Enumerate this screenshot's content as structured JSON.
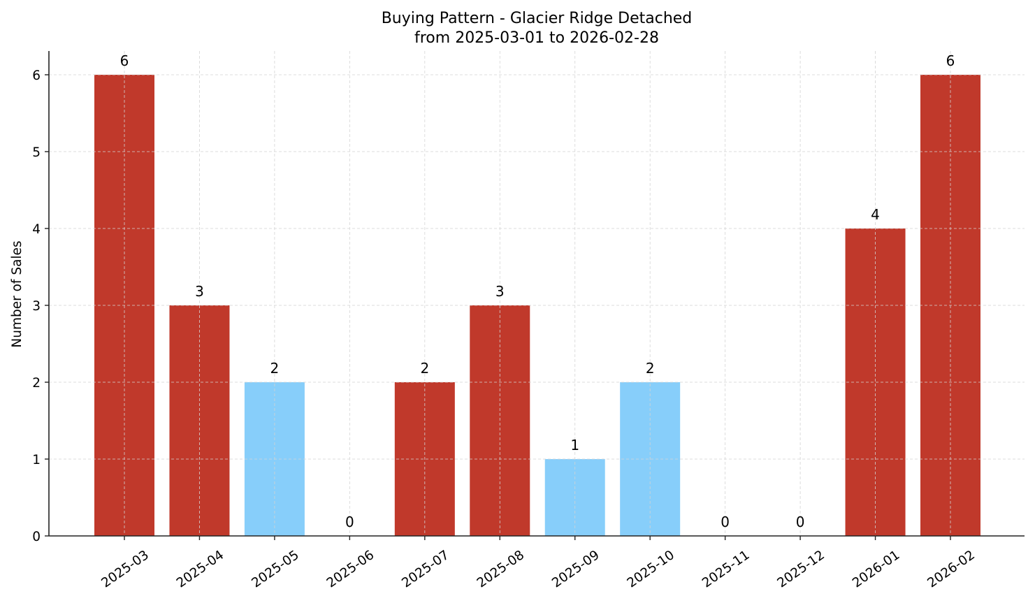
{
  "chart_data": {
    "type": "bar",
    "title": "Buying Pattern - Glacier Ridge Detached",
    "subtitle": "from 2025-03-01 to 2026-02-28",
    "xlabel": "",
    "ylabel": "Number of Sales",
    "categories": [
      "2025-03",
      "2025-04",
      "2025-05",
      "2025-06",
      "2025-07",
      "2025-08",
      "2025-09",
      "2025-10",
      "2025-11",
      "2025-12",
      "2026-01",
      "2026-02"
    ],
    "values": [
      6,
      3,
      2,
      0,
      2,
      3,
      1,
      2,
      0,
      0,
      4,
      6
    ],
    "bar_colors": [
      "#c0392b",
      "#c0392b",
      "#87cefa",
      "#c0392b",
      "#c0392b",
      "#c0392b",
      "#87cefa",
      "#87cefa",
      "#c0392b",
      "#c0392b",
      "#c0392b",
      "#c0392b"
    ],
    "data_labels": [
      "6",
      "3",
      "2",
      "0",
      "2",
      "3",
      "1",
      "2",
      "0",
      "0",
      "4",
      "6"
    ],
    "ylim": [
      0,
      6.3
    ],
    "yticks": [
      0,
      1,
      2,
      3,
      4,
      5,
      6
    ],
    "grid": true,
    "grid_style": "dashed",
    "legend": null,
    "xtick_rotation": 35
  },
  "colors": {
    "high": "#c0392b",
    "low": "#87cefa",
    "axis": "#222222",
    "grid": "#d3d3d3"
  }
}
